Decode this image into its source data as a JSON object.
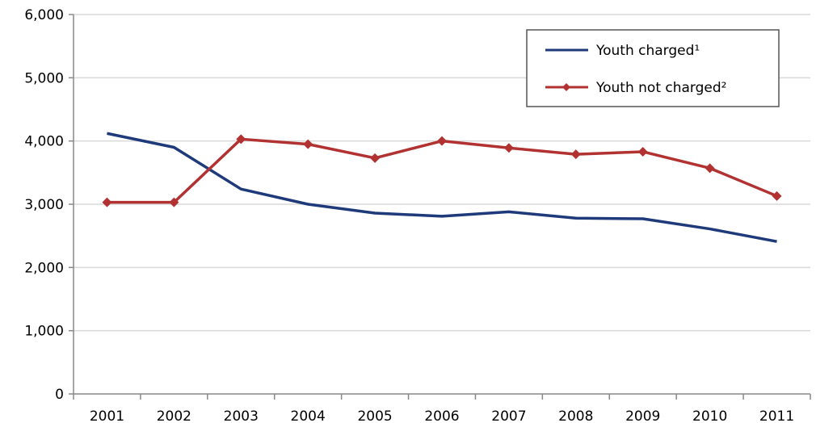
{
  "chart_data": {
    "type": "line",
    "title": "",
    "xlabel": "",
    "ylabel": "",
    "categories": [
      "2001",
      "2002",
      "2003",
      "2004",
      "2005",
      "2006",
      "2007",
      "2008",
      "2009",
      "2010",
      "2011"
    ],
    "ylim": [
      0,
      6000
    ],
    "yticks": [
      "0",
      "1,000",
      "2,000",
      "3,000",
      "4,000",
      "5,000",
      "6,000"
    ],
    "ytick_values": [
      0,
      1000,
      2000,
      3000,
      4000,
      5000,
      6000
    ],
    "grid": true,
    "legend_position": "top-right",
    "series": [
      {
        "name": "Youth charged¹",
        "color": "#1f3a7a",
        "marker": "none",
        "values": [
          4120,
          3900,
          3240,
          3000,
          2860,
          2810,
          2880,
          2780,
          2770,
          2610,
          2410
        ]
      },
      {
        "name": "Youth not charged²",
        "color": "#b23232",
        "marker": "diamond",
        "values": [
          3030,
          3030,
          4030,
          3950,
          3730,
          4000,
          3890,
          3790,
          3830,
          3570,
          3130
        ]
      }
    ]
  }
}
